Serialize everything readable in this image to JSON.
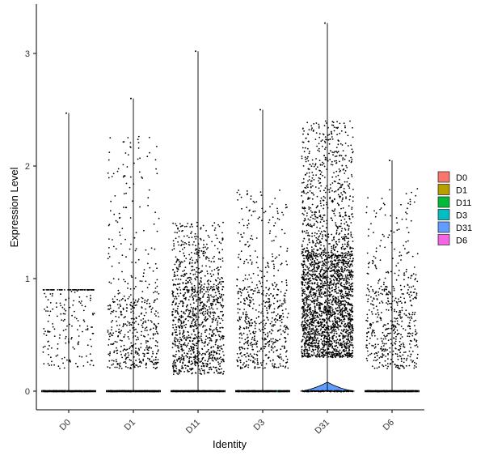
{
  "chart_data": {
    "type": "violin",
    "title": "",
    "xlabel": "Identity",
    "ylabel": "Expression Level",
    "ylim": [
      -0.18,
      3.32
    ],
    "yticks": [
      0,
      1,
      2,
      3
    ],
    "categories": [
      "D0",
      "D1",
      "D11",
      "D3",
      "D31",
      "D6"
    ],
    "colors": [
      "#F8766D",
      "#B79F00",
      "#00BA38",
      "#00BFC4",
      "#619CFF",
      "#F564E3"
    ],
    "legend": {
      "position": "right",
      "entries": [
        "D0",
        "D1",
        "D11",
        "D3",
        "D31",
        "D6"
      ]
    },
    "grid": false,
    "jitter_points": true,
    "series": [
      {
        "name": "D0",
        "max": 2.47,
        "upper_spread": 0.9,
        "violin_halfwidth": 0.42,
        "peak_value": 0.0,
        "nonzero_points": 220,
        "dense_range": [
          0.2,
          0.9
        ]
      },
      {
        "name": "D1",
        "max": 2.6,
        "upper_spread": 2.3,
        "violin_halfwidth": 0.42,
        "peak_value": 0.0,
        "nonzero_points": 520,
        "dense_range": [
          0.2,
          0.8
        ]
      },
      {
        "name": "D11",
        "max": 3.02,
        "upper_spread": 1.5,
        "violin_halfwidth": 0.42,
        "peak_value": 0.0,
        "nonzero_points": 1150,
        "dense_range": [
          0.15,
          0.9
        ]
      },
      {
        "name": "D3",
        "max": 2.5,
        "upper_spread": 1.8,
        "violin_halfwidth": 0.42,
        "peak_value": 0.0,
        "nonzero_points": 620,
        "dense_range": [
          0.2,
          0.9
        ]
      },
      {
        "name": "D31",
        "max": 3.27,
        "upper_spread": 2.4,
        "violin_halfwidth": 0.42,
        "peak_value": 0.08,
        "nonzero_points": 2600,
        "dense_range": [
          0.3,
          1.2
        ]
      },
      {
        "name": "D6",
        "max": 2.05,
        "upper_spread": 1.8,
        "violin_halfwidth": 0.42,
        "peak_value": 0.0,
        "nonzero_points": 540,
        "dense_range": [
          0.2,
          0.9
        ]
      }
    ]
  }
}
